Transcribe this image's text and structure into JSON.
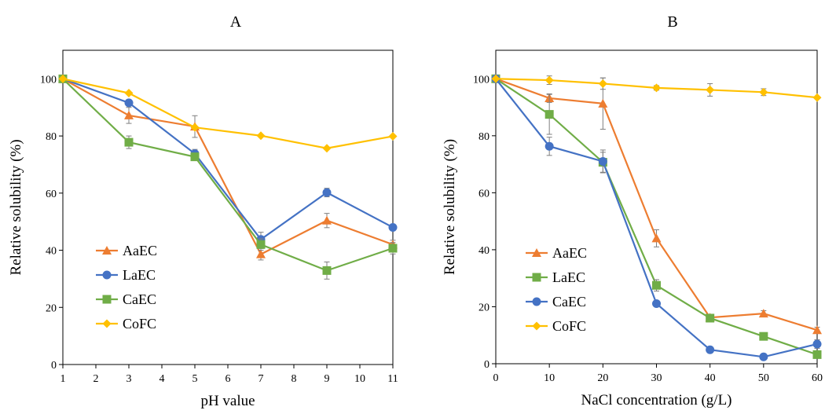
{
  "chart_data": [
    {
      "type": "line",
      "title": "A",
      "xlabel": "pH value",
      "ylabel": "Relative solubility (%)",
      "xlim": [
        1,
        11
      ],
      "ylim": [
        0,
        110
      ],
      "xticks": [
        1,
        2,
        3,
        4,
        5,
        6,
        7,
        8,
        9,
        10,
        11
      ],
      "yticks": [
        0,
        20,
        40,
        60,
        80,
        100
      ],
      "grid": false,
      "legend_position": "bottom-left",
      "x": [
        1,
        3,
        5,
        7,
        9,
        11
      ],
      "series": [
        {
          "name": "AaEC",
          "color": "#ED7D31",
          "marker": "triangle",
          "values": [
            100,
            87.2,
            83.3,
            38.6,
            50.4,
            42
          ],
          "errors": [
            0.5,
            2.8,
            3.8,
            2.0,
            2.5,
            1.5
          ]
        },
        {
          "name": "LaEC",
          "color": "#4472C4",
          "marker": "circle",
          "values": [
            100,
            91.6,
            73.8,
            43.8,
            60.2,
            48
          ],
          "errors": [
            0.5,
            1.0,
            1.5,
            2.5,
            1.5,
            1.0
          ]
        },
        {
          "name": "CaEC",
          "color": "#70AD47",
          "marker": "square",
          "values": [
            100,
            77.8,
            72.7,
            42,
            32.9,
            40.7
          ],
          "errors": [
            0.5,
            2.2,
            1.0,
            2.0,
            3.0,
            2.0
          ]
        },
        {
          "name": "CoFC",
          "color": "#FFC000",
          "marker": "diamond",
          "values": [
            100,
            95,
            83,
            80.1,
            75.7,
            79.9
          ],
          "errors": [
            0.3,
            0.5,
            0.5,
            0.5,
            0.5,
            0.5
          ]
        }
      ]
    },
    {
      "type": "line",
      "title": "B",
      "xlabel": "NaCl concentration (g/L)",
      "ylabel": "Relative solubility (%)",
      "xlim": [
        0,
        60
      ],
      "ylim": [
        0,
        110
      ],
      "xticks": [
        0,
        10,
        20,
        30,
        40,
        50,
        60
      ],
      "yticks": [
        0,
        20,
        40,
        60,
        80,
        100
      ],
      "grid": false,
      "legend_position": "bottom-left",
      "x": [
        0,
        10,
        20,
        30,
        40,
        50,
        60
      ],
      "series": [
        {
          "name": "AaEC",
          "color": "#ED7D31",
          "marker": "triangle",
          "values": [
            100,
            93.2,
            91.3,
            44,
            16.2,
            17.6,
            11.8
          ],
          "errors": [
            0.5,
            1.5,
            9.0,
            3.0,
            1.0,
            1.0,
            1.0
          ]
        },
        {
          "name": "LaEC",
          "color": "#70AD47",
          "marker": "square",
          "values": [
            100,
            87.5,
            70.7,
            27.5,
            16,
            9.6,
            3.2
          ],
          "errors": [
            0.5,
            7.0,
            3.5,
            2.0,
            1.0,
            0.8,
            1.0
          ]
        },
        {
          "name": "CaEC",
          "color": "#4472C4",
          "marker": "circle",
          "values": [
            100,
            76.3,
            71,
            21.1,
            4.9,
            2.4,
            6.9
          ],
          "errors": [
            0.5,
            3.2,
            4.0,
            1.0,
            1.0,
            1.0,
            1.5
          ]
        },
        {
          "name": "CoFC",
          "color": "#FFC000",
          "marker": "diamond",
          "values": [
            100,
            99.5,
            98.3,
            96.8,
            96.1,
            95.3,
            93.4
          ],
          "errors": [
            0.5,
            1.5,
            2.0,
            0.8,
            2.2,
            1.2,
            0.5
          ]
        }
      ]
    }
  ]
}
